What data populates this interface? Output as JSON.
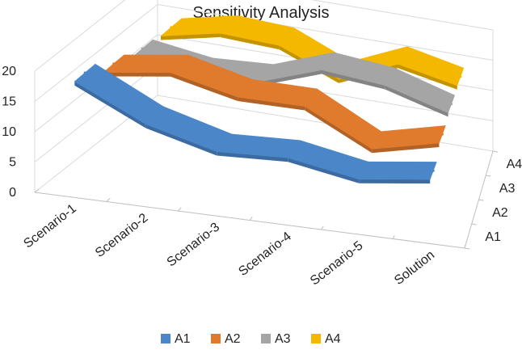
{
  "chart_data": {
    "type": "line",
    "style": "3d-ribbon",
    "title": "Sensitivity Analysis",
    "categories": [
      "Scenario-1",
      "Scenario-2",
      "Scenario-3",
      "Scenario-4",
      "Scenario-5",
      "Solution"
    ],
    "depth_labels": [
      "A1",
      "A2",
      "A3",
      "A4"
    ],
    "ylim": [
      0,
      20
    ],
    "yticks": [
      "0",
      "5",
      "10",
      "15",
      "20"
    ],
    "grid": true,
    "legend_position": "bottom",
    "series": [
      {
        "name": "A1",
        "color": "#4a86c8",
        "values": [
          18.5,
          13,
          10,
          10.5,
          8.5,
          10
        ]
      },
      {
        "name": "A2",
        "color": "#e07b2e",
        "values": [
          16,
          17.5,
          15,
          15,
          9.5,
          12
        ]
      },
      {
        "name": "A3",
        "color": "#a5a5a5",
        "values": [
          14.5,
          13,
          13.5,
          17,
          16,
          13
        ]
      },
      {
        "name": "A4",
        "color": "#f5b800",
        "values": [
          14,
          16,
          15.5,
          11.5,
          15.5,
          13.5
        ]
      }
    ]
  }
}
